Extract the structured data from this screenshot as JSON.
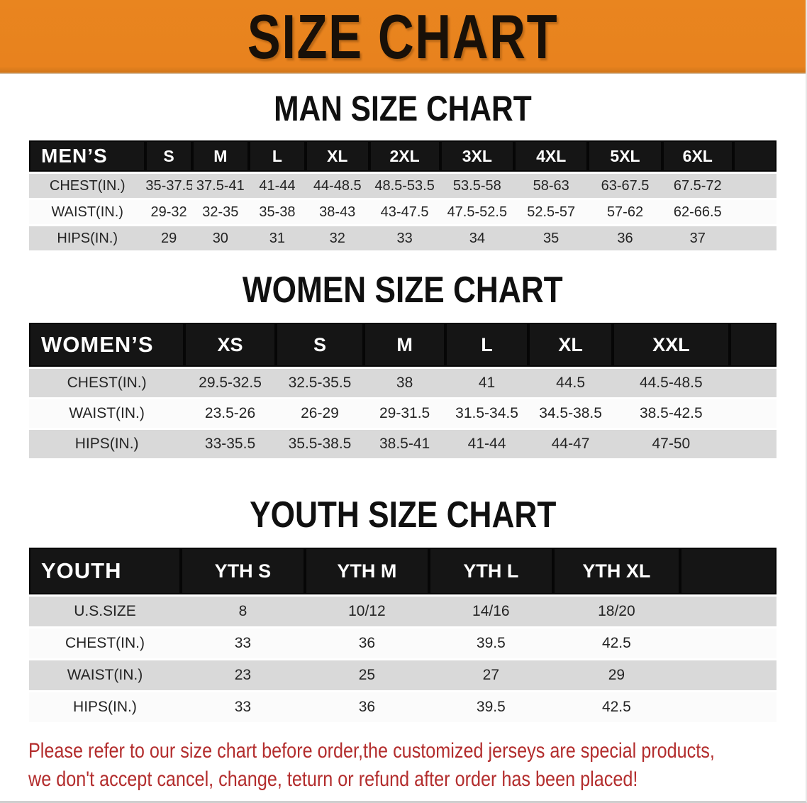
{
  "banner": {
    "title": "SIZE CHART"
  },
  "sections": [
    {
      "id": "men",
      "heading": "MAN SIZE CHART",
      "table": {
        "label": "MEN’S",
        "columns": [
          "S",
          "M",
          "L",
          "XL",
          "2XL",
          "3XL",
          "4XL",
          "5XL",
          "6XL"
        ],
        "rows": [
          {
            "label": "CHEST(IN.)",
            "values": [
              "35-37.5",
              "37.5-41",
              "41-44",
              "44-48.5",
              "48.5-53.5",
              "53.5-58",
              "58-63",
              "63-67.5",
              "67.5-72"
            ]
          },
          {
            "label": "WAIST(IN.)",
            "values": [
              "29-32",
              "32-35",
              "35-38",
              "38-43",
              "43-47.5",
              "47.5-52.5",
              "52.5-57",
              "57-62",
              "62-66.5"
            ]
          },
          {
            "label": "HIPS(IN.)",
            "values": [
              "29",
              "30",
              "31",
              "32",
              "33",
              "34",
              "35",
              "36",
              "37"
            ]
          }
        ]
      }
    },
    {
      "id": "women",
      "heading": "WOMEN SIZE CHART",
      "table": {
        "label": "WOMEN’S",
        "columns": [
          "XS",
          "S",
          "M",
          "L",
          "XL",
          "XXL"
        ],
        "rows": [
          {
            "label": "CHEST(IN.)",
            "values": [
              "29.5-32.5",
              "32.5-35.5",
              "38",
              "41",
              "44.5",
              "44.5-48.5"
            ]
          },
          {
            "label": "WAIST(IN.)",
            "values": [
              "23.5-26",
              "26-29",
              "29-31.5",
              "31.5-34.5",
              "34.5-38.5",
              "38.5-42.5"
            ]
          },
          {
            "label": "HIPS(IN.)",
            "values": [
              "33-35.5",
              "35.5-38.5",
              "38.5-41",
              "41-44",
              "44-47",
              "47-50"
            ]
          }
        ]
      }
    },
    {
      "id": "youth",
      "heading": "YOUTH SIZE CHART",
      "table": {
        "label": "YOUTH",
        "columns": [
          "YTH S",
          "YTH M",
          "YTH L",
          "YTH XL"
        ],
        "rows": [
          {
            "label": "U.S.SIZE",
            "values": [
              "8",
              "10/12",
              "14/16",
              "18/20"
            ]
          },
          {
            "label": "CHEST(IN.)",
            "values": [
              "33",
              "36",
              "39.5",
              "42.5"
            ]
          },
          {
            "label": "WAIST(IN.)",
            "values": [
              "23",
              "25",
              "27",
              "29"
            ]
          },
          {
            "label": "HIPS(IN.)",
            "values": [
              "33",
              "36",
              "39.5",
              "42.5"
            ]
          }
        ]
      }
    }
  ],
  "disclaimer": {
    "lines": [
      "Please refer to our size chart before order,the customized jerseys are special products,",
      "we don't accept cancel, change, teturn or refund after order has been placed!"
    ]
  },
  "colors": {
    "banner_orange": "#e8821e",
    "table_header_black": "#151515",
    "stripe_gray": "#d9d9d9",
    "disclaimer_red": "#b32d2d"
  }
}
